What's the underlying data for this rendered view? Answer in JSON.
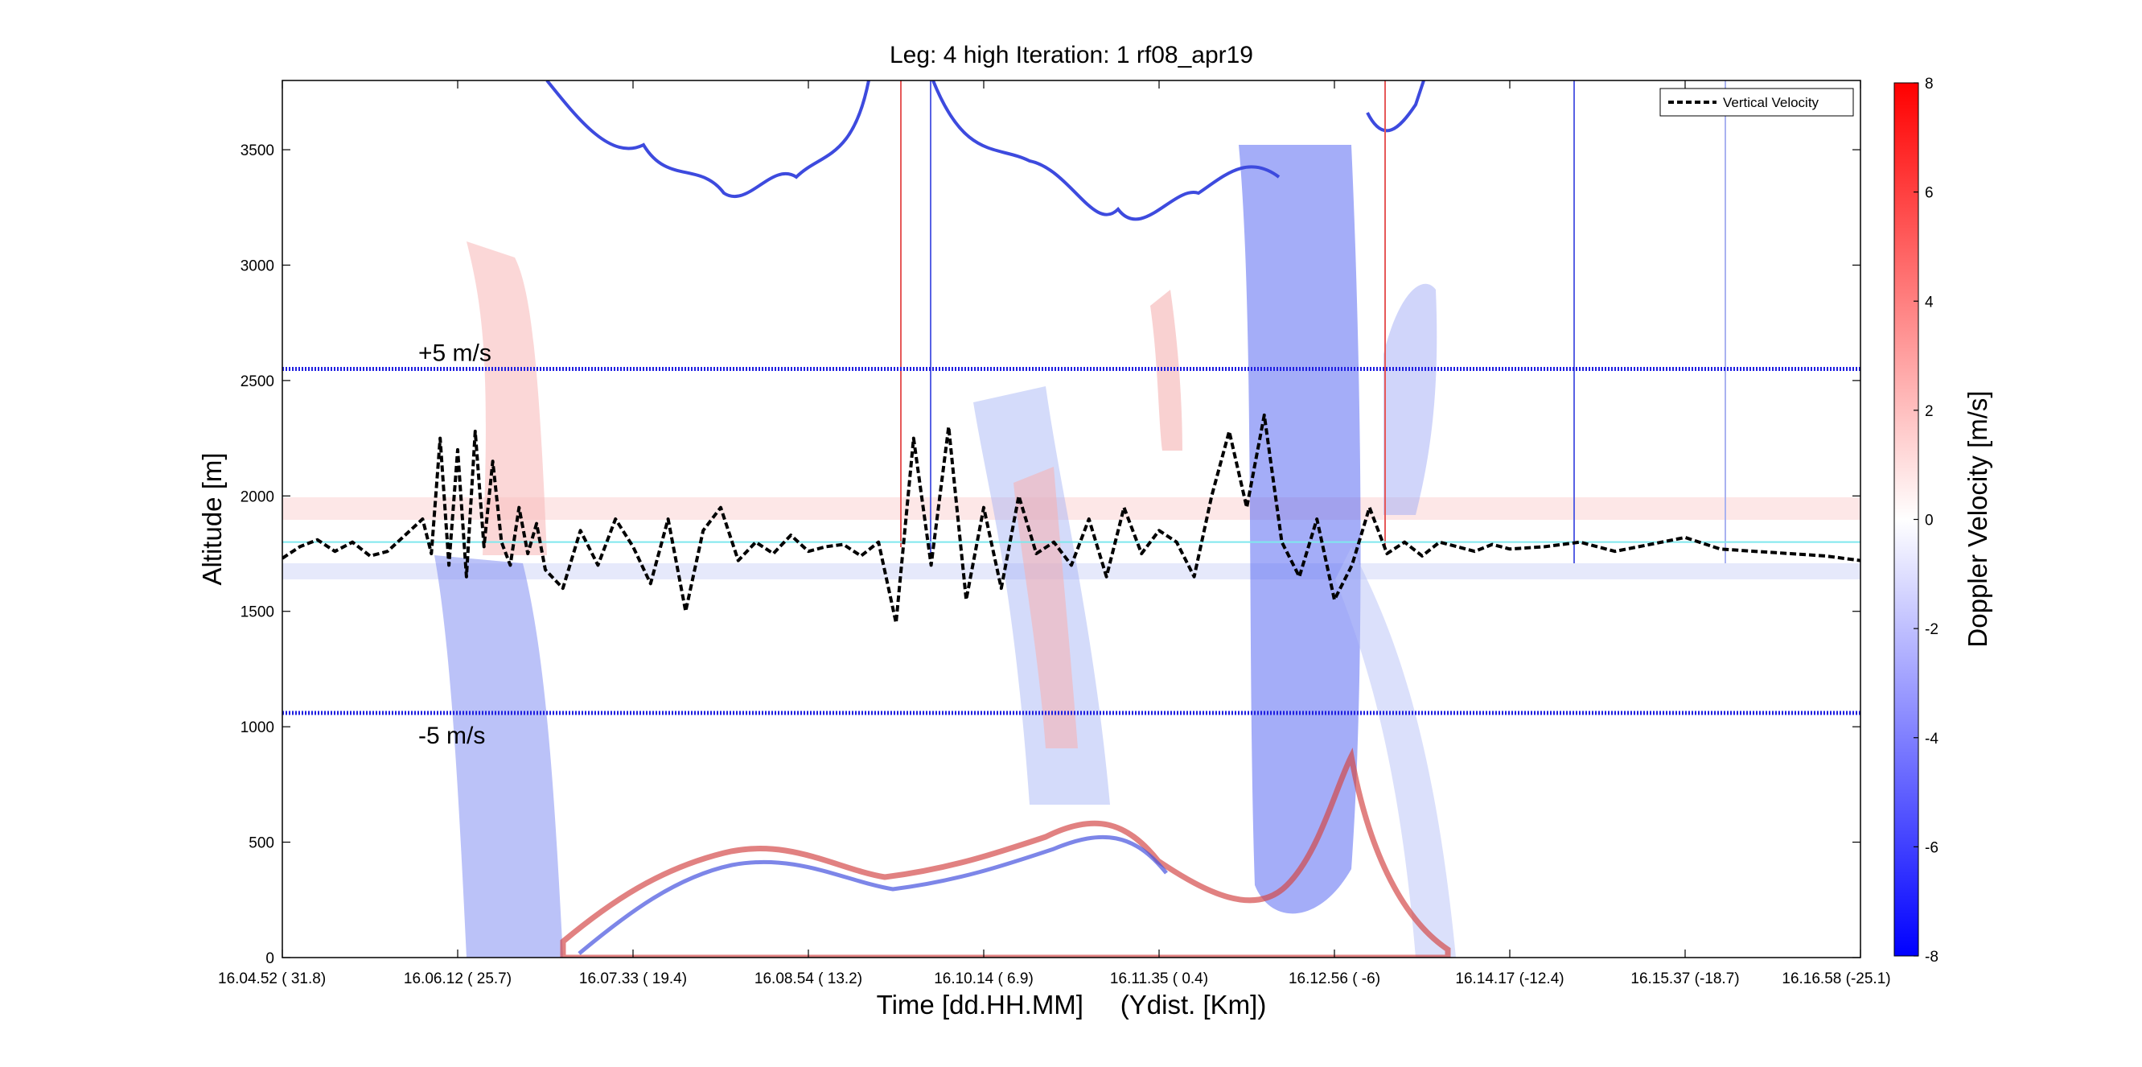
{
  "chart_data": {
    "type": "heatmap",
    "title": "Leg: 4 high Iteration: 1  rf08_apr19",
    "xlabel": "Time [dd.HH.MM]     (Ydist. [Km])",
    "ylabel": "Altitude [m]",
    "colorbar_label": "Doppler Velocity [m/s]",
    "x_ticks": [
      {
        "x": 0,
        "label": "16.04.52   ( 31.8)"
      },
      {
        "x": 1,
        "label": "16.06.12   ( 25.7)"
      },
      {
        "x": 2,
        "label": "16.07.33   ( 19.4)"
      },
      {
        "x": 3,
        "label": "16.08.54   ( 13.2)"
      },
      {
        "x": 4,
        "label": "16.10.14   ( 6.9)"
      },
      {
        "x": 5,
        "label": "16.11.35   ( 0.4)"
      },
      {
        "x": 6,
        "label": "16.12.56   (  -6)"
      },
      {
        "x": 7,
        "label": "16.14.17   (-12.4)"
      },
      {
        "x": 8,
        "label": "16.15.37   (-18.7)"
      },
      {
        "x": 9,
        "label": "16.16.58   (-25.1)"
      }
    ],
    "xlim": [
      0,
      9
    ],
    "y_ticks": [
      0,
      500,
      1000,
      1500,
      2000,
      2500,
      3000,
      3500
    ],
    "ylim": [
      0,
      3800
    ],
    "colorbar_ticks": [
      -8,
      -6,
      -4,
      -2,
      0,
      2,
      4,
      6,
      8
    ],
    "clim": [
      -8,
      8
    ],
    "colormap": {
      "low": "#0000ff",
      "mid": "#ffffff",
      "high": "#ff0000"
    },
    "legend": {
      "label": "Vertical Velocity",
      "placement": "top-right",
      "line_style": "dashed",
      "color": "#000000"
    },
    "reference_lines": [
      {
        "label": "+5 m/s",
        "y": 2550,
        "color": "#2020e0",
        "style": "dotted"
      },
      {
        "label": "-5 m/s",
        "y": 1060,
        "color": "#2020e0",
        "style": "dotted"
      },
      {
        "label": "",
        "y": 1800,
        "color": "#7fe8ee",
        "style": "solid"
      }
    ],
    "grid": false,
    "series": [
      {
        "name": "Vertical Velocity",
        "x": [
          0.0,
          0.1,
          0.2,
          0.3,
          0.4,
          0.5,
          0.6,
          0.7,
          0.8,
          0.85,
          0.9,
          0.95,
          1.0,
          1.05,
          1.1,
          1.15,
          1.2,
          1.25,
          1.3,
          1.35,
          1.4,
          1.45,
          1.5,
          1.6,
          1.7,
          1.8,
          1.9,
          2.0,
          2.1,
          2.2,
          2.3,
          2.4,
          2.5,
          2.6,
          2.7,
          2.8,
          2.9,
          3.0,
          3.1,
          3.2,
          3.3,
          3.4,
          3.5,
          3.6,
          3.7,
          3.8,
          3.9,
          4.0,
          4.1,
          4.2,
          4.3,
          4.4,
          4.5,
          4.6,
          4.7,
          4.8,
          4.9,
          5.0,
          5.1,
          5.2,
          5.3,
          5.4,
          5.5,
          5.6,
          5.7,
          5.8,
          5.9,
          6.0,
          6.1,
          6.2,
          6.3,
          6.4,
          6.5,
          6.6,
          6.7,
          6.8,
          6.9,
          7.0,
          7.2,
          7.4,
          7.6,
          7.8,
          8.0,
          8.2,
          8.4,
          8.6,
          8.8,
          9.0
        ],
        "y": [
          1730,
          1780,
          1810,
          1760,
          1800,
          1740,
          1760,
          1830,
          1900,
          1750,
          2250,
          1700,
          2200,
          1650,
          2280,
          1780,
          2150,
          1800,
          1700,
          1950,
          1750,
          1880,
          1680,
          1600,
          1850,
          1700,
          1900,
          1780,
          1620,
          1900,
          1500,
          1850,
          1950,
          1720,
          1800,
          1750,
          1830,
          1760,
          1780,
          1790,
          1740,
          1800,
          1450,
          2250,
          1700,
          2300,
          1550,
          1950,
          1600,
          2000,
          1750,
          1800,
          1700,
          1900,
          1650,
          1950,
          1750,
          1850,
          1800,
          1650,
          2000,
          2280,
          1950,
          2350,
          1800,
          1650,
          1900,
          1550,
          1700,
          1950,
          1750,
          1800,
          1740,
          1800,
          1780,
          1760,
          1790,
          1770,
          1780,
          1800,
          1760,
          1790,
          1820,
          1770,
          1760,
          1750,
          1740,
          1720
        ]
      }
    ]
  }
}
